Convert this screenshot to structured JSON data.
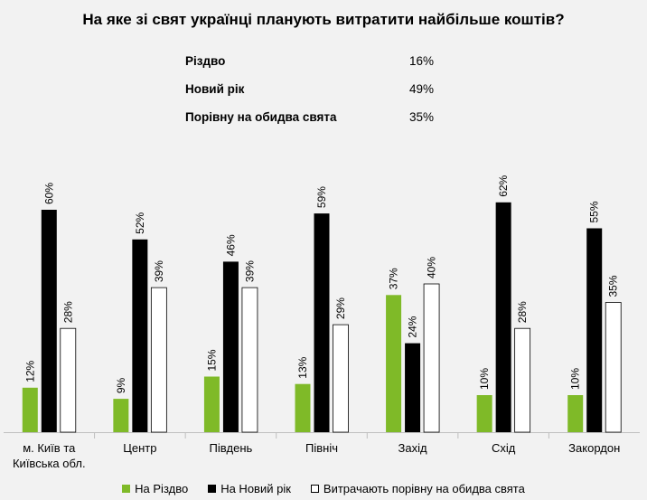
{
  "title": "На яке зі свят українці планують витратити найбільше коштів?",
  "summary": [
    {
      "label": "Різдво",
      "value": "16%"
    },
    {
      "label": "Новий рік",
      "value": "49%"
    },
    {
      "label": "Порівну на обидва свята",
      "value": "35%"
    }
  ],
  "colors": {
    "christmas": "#7fba28",
    "newyear": "#000000",
    "equal": "#ffffff"
  },
  "chart_data": {
    "type": "bar",
    "title": "",
    "xlabel": "",
    "ylabel": "",
    "ylim": [
      0,
      70
    ],
    "grid": false,
    "legend_position": "bottom",
    "categories": [
      [
        "м. Київ та",
        "Київська обл."
      ],
      [
        "Центр"
      ],
      [
        "Південь"
      ],
      [
        "Північ"
      ],
      [
        "Захід"
      ],
      [
        "Схід"
      ],
      [
        "Закордон"
      ]
    ],
    "series": [
      {
        "name": "На Різдво",
        "color": "#7fba28",
        "values": [
          12,
          9,
          15,
          13,
          37,
          10,
          10
        ]
      },
      {
        "name": "На Новий рік",
        "color": "#000000",
        "values": [
          60,
          52,
          46,
          59,
          24,
          62,
          55
        ]
      },
      {
        "name": "Витрачають порівну на обидва свята",
        "color": "#ffffff",
        "values": [
          28,
          39,
          39,
          29,
          40,
          28,
          35
        ]
      }
    ]
  }
}
